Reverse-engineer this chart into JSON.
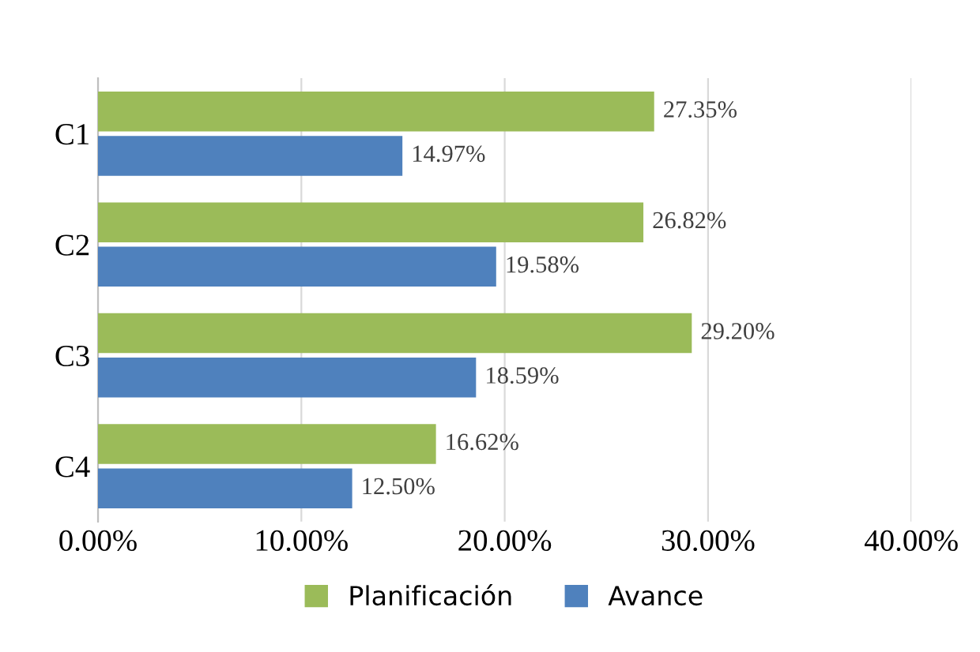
{
  "chart_data": {
    "type": "bar",
    "orientation": "horizontal",
    "categories": [
      "C1",
      "C2",
      "C3",
      "C4"
    ],
    "series": [
      {
        "name": "Planificación",
        "color": "#9bbb59",
        "values": [
          27.35,
          26.82,
          29.2,
          16.62
        ],
        "value_labels": [
          "27.35%",
          "26.82%",
          "29.20%",
          "16.62%"
        ]
      },
      {
        "name": "Avance",
        "color": "#4f81bd",
        "values": [
          14.97,
          19.58,
          18.59,
          12.5
        ],
        "value_labels": [
          "14.97%",
          "19.58%",
          "18.59%",
          "12.50%"
        ]
      }
    ],
    "xlim": [
      0,
      40
    ],
    "xticks": [
      {
        "value": 0,
        "label": "0.00%"
      },
      {
        "value": 10,
        "label": "10.00%"
      },
      {
        "value": 20,
        "label": "20.00%"
      },
      {
        "value": 30,
        "label": "30.00%"
      },
      {
        "value": 40,
        "label": "40.00%"
      }
    ],
    "grid": "x",
    "legend": "bottom"
  }
}
